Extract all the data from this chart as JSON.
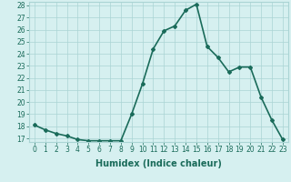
{
  "x": [
    0,
    1,
    2,
    3,
    4,
    5,
    6,
    7,
    8,
    9,
    10,
    11,
    12,
    13,
    14,
    15,
    16,
    17,
    18,
    19,
    20,
    21,
    22,
    23
  ],
  "y": [
    18.1,
    17.7,
    17.4,
    17.2,
    16.9,
    16.8,
    16.8,
    16.8,
    16.8,
    19.0,
    21.5,
    24.4,
    25.9,
    26.3,
    27.6,
    28.1,
    24.6,
    23.7,
    22.5,
    22.9,
    22.9,
    20.4,
    18.5,
    16.9
  ],
  "line_color": "#1a6b5a",
  "marker": "D",
  "marker_size": 2.0,
  "bg_color": "#d6f0f0",
  "grid_color": "#aad4d4",
  "xlabel": "Humidex (Indice chaleur)",
  "ylim_min": 16.7,
  "ylim_max": 28.3,
  "xlim_min": -0.5,
  "xlim_max": 23.5,
  "yticks": [
    17,
    18,
    19,
    20,
    21,
    22,
    23,
    24,
    25,
    26,
    27,
    28
  ],
  "xticks": [
    0,
    1,
    2,
    3,
    4,
    5,
    6,
    7,
    8,
    9,
    10,
    11,
    12,
    13,
    14,
    15,
    16,
    17,
    18,
    19,
    20,
    21,
    22,
    23
  ],
  "tick_label_fontsize": 5.5,
  "xlabel_fontsize": 7.0,
  "line_width": 1.2
}
